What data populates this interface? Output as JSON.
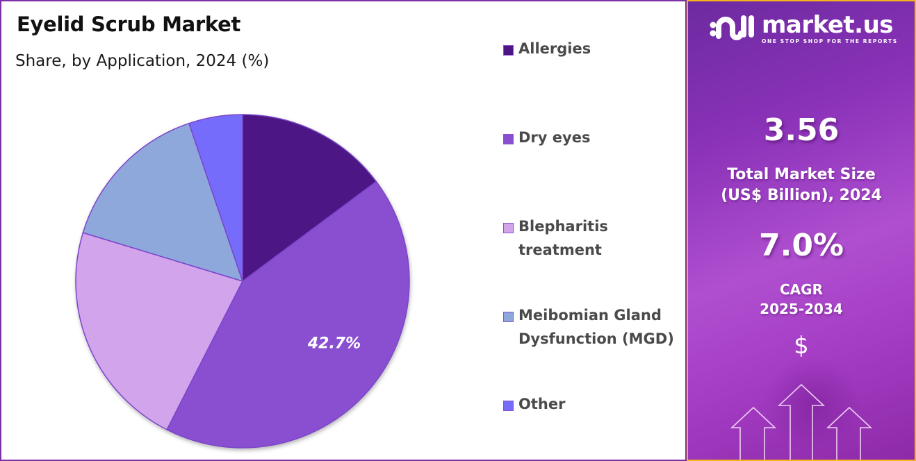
{
  "header": {
    "title": "Eyelid Scrub Market",
    "subtitle": "Share, by Application, 2024 (%)"
  },
  "legend": {
    "items": [
      {
        "label_lines": [
          "Allergies"
        ],
        "color": "#4e1585"
      },
      {
        "label_lines": [
          "Dry eyes"
        ],
        "color": "#8a4fd0"
      },
      {
        "label_lines": [
          "Blepharitis",
          "treatment"
        ],
        "color": "#d2a4ec"
      },
      {
        "label_lines": [
          "Meibomian Gland",
          "Dysfunction (MGD)"
        ],
        "color": "#8fa8dc"
      },
      {
        "label_lines": [
          "Other"
        ],
        "color": "#766cfc"
      }
    ]
  },
  "pie": {
    "highlight_label": "42.7%"
  },
  "sidebar": {
    "brand": {
      "name": "market.us",
      "tagline": "ONE STOP SHOP FOR THE REPORTS"
    },
    "market_size": {
      "value": "3.56",
      "caption_line1": "Total Market Size",
      "caption_line2": "(US$ Billion), 2024"
    },
    "cagr": {
      "value": "7.0%",
      "caption_line1": "CAGR",
      "caption_line2": "2025-2034"
    },
    "currency_symbol": "$"
  },
  "colors": {
    "left_border": "#7b2fa8",
    "right_border": "#f4b41a",
    "slice_edge": "#7a45c8"
  },
  "chart_data": {
    "type": "pie",
    "title": "Eyelid Scrub Market",
    "subtitle": "Share, by Application, 2024 (%)",
    "categories": [
      "Allergies",
      "Dry eyes",
      "Blepharitis treatment",
      "Meibomian Gland Dysfunction (MGD)",
      "Other"
    ],
    "values": [
      14.8,
      42.7,
      22.2,
      15.1,
      5.2
    ],
    "colors": [
      "#4e1585",
      "#8a4fd0",
      "#d2a4ec",
      "#8fa8dc",
      "#766cfc"
    ],
    "data_labels": {
      "Dry eyes": "42.7%"
    },
    "start_angle_deg": 0,
    "direction": "clockwise",
    "legend_position": "right",
    "annotations": {
      "total_market_size_usd_billion_2024": 3.56,
      "cagr_2025_2034": "7.0%"
    }
  }
}
